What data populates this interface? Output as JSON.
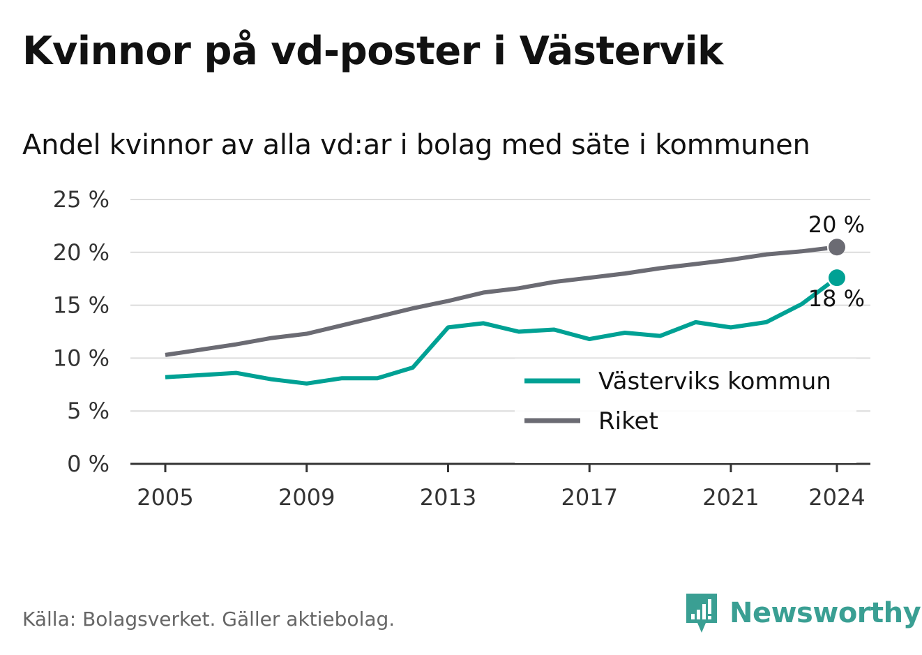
{
  "title": "Kvinnor på vd-poster i Västervik",
  "subtitle": "Andel kvinnor av alla vd:ar i bolag med säte i kommunen",
  "source": "Källa: Bolagsverket. Gäller aktiebolag.",
  "brand": {
    "name": "Newsworthy",
    "color": "#3a9f93",
    "icon": "newsworthy-logo-icon"
  },
  "chart_data": {
    "type": "line",
    "title": "Kvinnor på vd-poster i Västervik",
    "subtitle": "Andel kvinnor av alla vd:ar i bolag med säte i kommunen",
    "xlabel": "",
    "ylabel": "",
    "x": [
      2005,
      2006,
      2007,
      2008,
      2009,
      2010,
      2011,
      2012,
      2013,
      2014,
      2015,
      2016,
      2017,
      2018,
      2019,
      2020,
      2021,
      2022,
      2023,
      2024
    ],
    "xticks": [
      2005,
      2009,
      2013,
      2017,
      2021,
      2024
    ],
    "xlim": [
      2004,
      2025
    ],
    "ylim": [
      0,
      25
    ],
    "yticks": [
      0,
      5,
      10,
      15,
      20,
      25
    ],
    "ytick_labels": [
      "0 %",
      "5 %",
      "10 %",
      "15 %",
      "20 %",
      "25 %"
    ],
    "grid": "horizontal",
    "legend_position": "bottom-right",
    "series": [
      {
        "name": "Västerviks kommun",
        "color": "#00a194",
        "values": [
          8.2,
          8.4,
          8.6,
          8.0,
          7.6,
          8.1,
          8.1,
          9.1,
          12.9,
          13.3,
          12.5,
          12.7,
          11.8,
          12.4,
          12.1,
          13.4,
          12.9,
          13.4,
          15.1,
          17.6
        ],
        "end_label": "18 %"
      },
      {
        "name": "Riket",
        "color": "#6b6b73",
        "values": [
          10.3,
          10.8,
          11.3,
          11.9,
          12.3,
          13.1,
          13.9,
          14.7,
          15.4,
          16.2,
          16.6,
          17.2,
          17.6,
          18.0,
          18.5,
          18.9,
          19.3,
          19.8,
          20.1,
          20.5
        ],
        "end_label": "20 %"
      }
    ]
  }
}
